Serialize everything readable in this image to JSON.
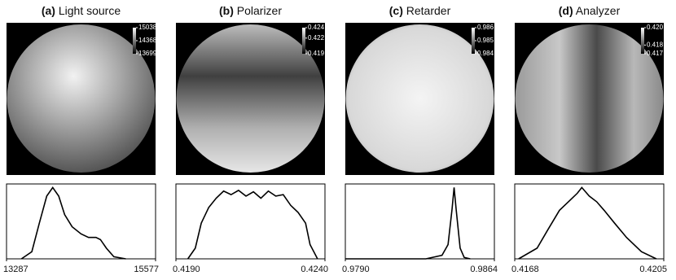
{
  "chart_data": [
    {
      "type": "line",
      "label": "(a)",
      "title": "Light source",
      "colorbar_ticks": [
        15038,
        14368,
        13699
      ],
      "x": [
        13516,
        13676,
        13791,
        13905,
        13997,
        14089,
        14180,
        14295,
        14432,
        14547,
        14661,
        14730,
        14821,
        14936,
        15119
      ],
      "values": [
        0,
        10,
        50,
        88,
        100,
        88,
        62,
        45,
        35,
        30,
        30,
        27,
        15,
        3,
        0
      ],
      "xlim": [
        13287,
        15577
      ],
      "xticks": [
        13287,
        15577
      ],
      "ylim": [
        0,
        105
      ],
      "color": "#000000"
    },
    {
      "type": "line",
      "label": "(b)",
      "title": "Polarizer",
      "colorbar_ticks": [
        0.424,
        0.422,
        0.419
      ],
      "x": [
        0.4194,
        0.41965,
        0.41985,
        0.4201,
        0.42035,
        0.4206,
        0.42085,
        0.4211,
        0.42135,
        0.4216,
        0.42185,
        0.4221,
        0.42235,
        0.4226,
        0.42285,
        0.4231,
        0.42335,
        0.4235,
        0.42375
      ],
      "values": [
        0,
        15,
        50,
        72,
        85,
        95,
        90,
        96,
        88,
        94,
        85,
        95,
        88,
        90,
        75,
        65,
        50,
        20,
        0
      ],
      "xlim": [
        0.419,
        0.424
      ],
      "xticks": [
        {
          "value": 0.419,
          "label": "0.4190"
        },
        {
          "value": 0.424,
          "label": "0.4240"
        }
      ],
      "ylim": [
        0,
        105
      ],
      "color": "#000000"
    },
    {
      "type": "line",
      "label": "(c)",
      "title": "Retarder",
      "colorbar_ticks": [
        0.986,
        0.985,
        0.984
      ],
      "x": [
        0.979,
        0.983,
        0.9838,
        0.9841,
        0.9843,
        0.9844,
        0.9845,
        0.9847,
        0.9849,
        0.9852
      ],
      "values": [
        0,
        0,
        5,
        20,
        70,
        100,
        70,
        15,
        2,
        0
      ],
      "xlim": [
        0.979,
        0.9864
      ],
      "xticks": [
        {
          "value": 0.979,
          "label": "0.9790"
        },
        0.9864
      ],
      "ylim": [
        0,
        105
      ],
      "color": "#000000"
    },
    {
      "type": "line",
      "label": "(d)",
      "title": "Analyzer",
      "colorbar_ticks": [
        {
          "value": 0.42,
          "label": "0.420"
        },
        0.418,
        0.417
      ],
      "x": [
        0.416896,
        0.417355,
        0.417614,
        0.41791,
        0.418169,
        0.418354,
        0.418465,
        0.41865,
        0.418835,
        0.41902,
        0.419279,
        0.419575,
        0.419945,
        0.420315
      ],
      "values": [
        0,
        15,
        40,
        68,
        82,
        92,
        100,
        88,
        80,
        68,
        50,
        30,
        10,
        0
      ],
      "xlim": [
        0.4168,
        0.4205
      ],
      "xticks": [
        0.4168,
        0.4205
      ],
      "ylim": [
        0,
        105
      ],
      "color": "#000000"
    }
  ]
}
